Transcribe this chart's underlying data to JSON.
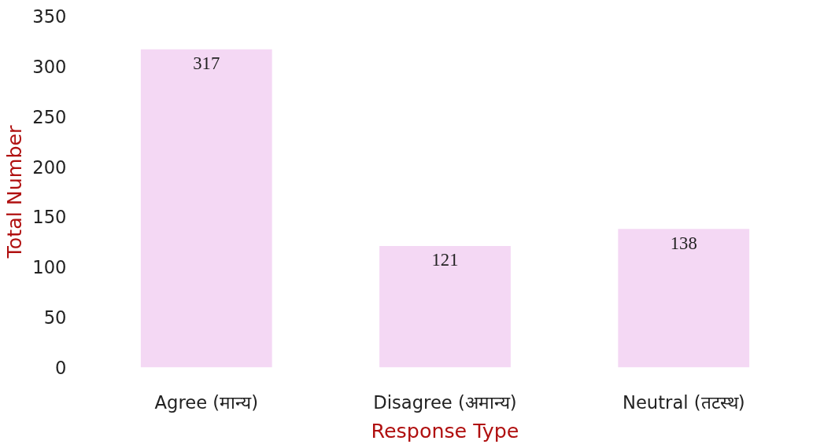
{
  "chart_data": {
    "type": "bar",
    "categories": [
      "Agree (मान्य)",
      "Disagree (अमान्य)",
      "Neutral (तटस्थ)"
    ],
    "values": [
      317,
      121,
      138
    ],
    "color": "#f4d8f4",
    "data_labels": true,
    "xlabel": "Response Type",
    "ylabel": "Total Number",
    "ylim": [
      0,
      350
    ],
    "yticks": [
      0,
      50,
      100,
      150,
      200,
      250,
      300,
      350
    ],
    "grid": false
  }
}
